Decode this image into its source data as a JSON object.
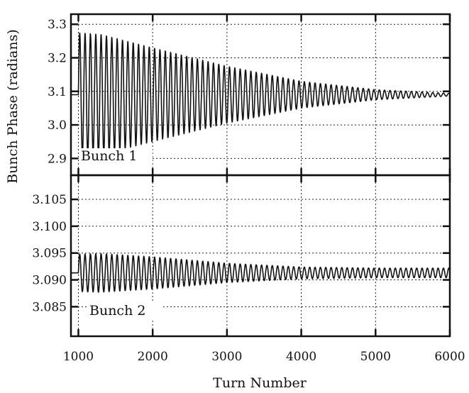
{
  "chart_data": {
    "type": "line",
    "xlabel": "Turn Number",
    "ylabel": "Bunch Phase (radians)",
    "xlim": [
      900,
      6000
    ],
    "x_ticks": [
      "1000",
      "2000",
      "3000",
      "4000",
      "5000",
      "6000"
    ],
    "grid": true,
    "panels": [
      {
        "name": "Bunch 1",
        "label": "Bunch 1",
        "ylim": [
          2.85,
          3.33
        ],
        "y_ticks": [
          "2.9",
          "3.0",
          "3.1",
          "3.2",
          "3.3"
        ],
        "y_tick_values": [
          2.9,
          3.0,
          3.1,
          3.2,
          3.3
        ],
        "baseline": 3.09,
        "oscillation_start_turn": 1000,
        "oscillation_period_turns": 72,
        "envelope": {
          "turn": [
            1000,
            1300,
            2000,
            3000,
            4000,
            5000,
            6000
          ],
          "amplitude": [
            0.185,
            0.18,
            0.14,
            0.085,
            0.04,
            0.015,
            0.004
          ]
        }
      },
      {
        "name": "Bunch 2",
        "label": "Bunch 2",
        "ylim": [
          3.0795,
          3.1095
        ],
        "y_ticks": [
          "3.085",
          "3.090",
          "3.095",
          "3.100",
          "3.105"
        ],
        "y_tick_values": [
          3.085,
          3.09,
          3.095,
          3.1,
          3.105
        ],
        "baseline": 3.0913,
        "oscillation_start_turn": 1000,
        "oscillation_period_turns": 72,
        "envelope": {
          "turn": [
            1000,
            1300,
            2000,
            3000,
            4000,
            5000,
            6000
          ],
          "amplitude": [
            0.0035,
            0.0036,
            0.003,
            0.0018,
            0.0011,
            0.0009,
            0.0009
          ]
        }
      }
    ]
  }
}
